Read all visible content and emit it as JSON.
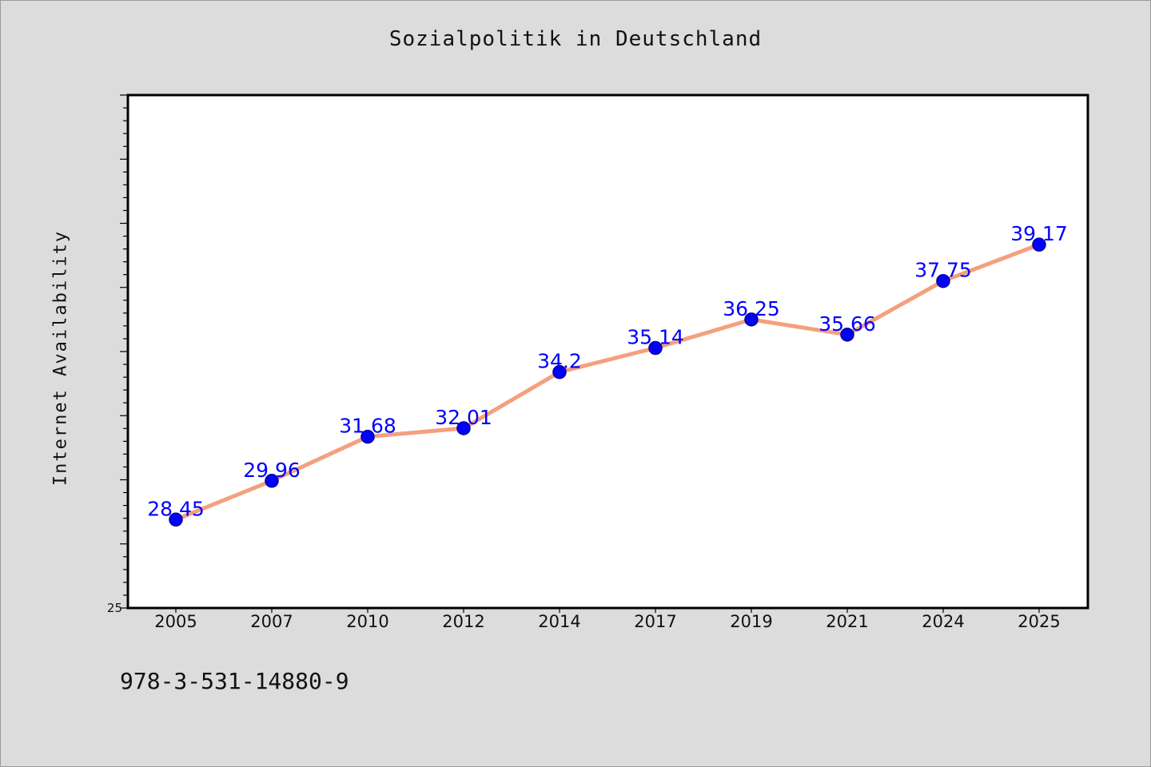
{
  "chart_data": {
    "type": "line",
    "title": "Sozialpolitik in Deutschland",
    "ylabel": "Internet Availability",
    "xlabel": "",
    "categories": [
      "2005",
      "2007",
      "2010",
      "2012",
      "2014",
      "2017",
      "2019",
      "2021",
      "2024",
      "2025"
    ],
    "series": [
      {
        "values": [
          28.45,
          29.96,
          31.68,
          32.01,
          34.2,
          35.14,
          36.25,
          35.66,
          37.75,
          39.17
        ]
      }
    ],
    "data_labels": [
      "28.45",
      "29.96",
      "31.68",
      "32.01",
      "34.2",
      "35.14",
      "36.25",
      "35.66",
      "37.75",
      "39.17"
    ],
    "ylim": [
      25,
      45
    ],
    "yticks_labeled": [
      "25"
    ],
    "grid": false,
    "colors": {
      "line": "#f4a07e",
      "marker": "#0000ff",
      "label": "#0000ff"
    }
  },
  "footer": {
    "isbn": "978-3-531-14880-9"
  }
}
